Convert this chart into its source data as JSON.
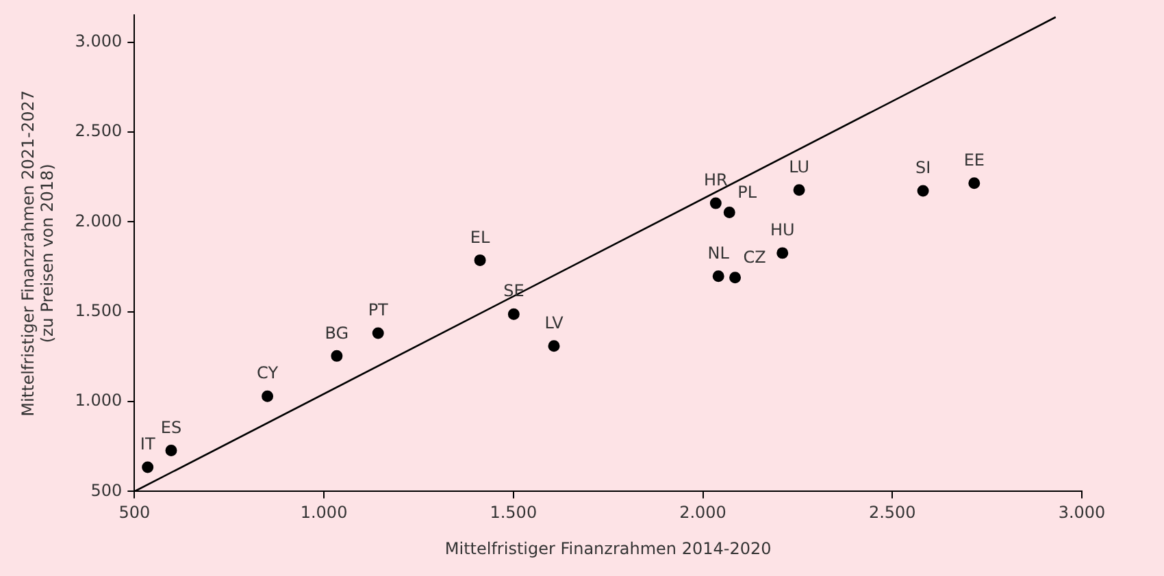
{
  "chart_data": {
    "type": "scatter",
    "xlabel": "Mittelfristiger Finanzrahmen 2014-2020",
    "ylabel": "Mittelfristiger Finanzrahmen 2021-2027\n(zu Preisen von 2018)",
    "xlim": [
      500,
      3000
    ],
    "xticks": [
      500,
      {
        "value": 1000,
        "label": "1.000"
      },
      {
        "value": 1500,
        "label": "1.500"
      },
      {
        "value": 2000,
        "label": "2.000"
      },
      {
        "value": 2500,
        "label": "2.500"
      },
      {
        "value": 3000,
        "label": "3.000"
      }
    ],
    "ylim": [
      500,
      3150
    ],
    "yticks": [
      500,
      {
        "value": 1000,
        "label": "1.000"
      },
      {
        "value": 1500,
        "label": "1.500"
      },
      {
        "value": 2000,
        "label": "2.000"
      },
      {
        "value": 2500,
        "label": "2.500"
      },
      {
        "value": 3000,
        "label": "3.000"
      }
    ],
    "grid": false,
    "marker": "circle",
    "series": [
      {
        "color": "#000000",
        "x": [
          535,
          597,
          851,
          1034,
          1143,
          1412,
          1501,
          1607,
          2034,
          2070,
          2254,
          2041,
          2085,
          2210,
          2581,
          2716
        ],
        "values": [
          635,
          728,
          1030,
          1254,
          1381,
          1787,
          1487,
          1310,
          2104,
          2053,
          2178,
          1698,
          1690,
          1827,
          2173,
          2216
        ],
        "value_labels": [
          "IT",
          "ES",
          "CY",
          "BG",
          "PT",
          "EL",
          "SE",
          "LV",
          "HR",
          "PL",
          "LU",
          "NL",
          "CZ",
          "HU",
          "SI",
          "EE"
        ]
      },
      {
        "type": "line",
        "color": "#000000",
        "x": [
          500,
          2931
        ],
        "values": [
          500,
          3140
        ],
        "marker": "none",
        "line_style": "solid"
      }
    ]
  }
}
